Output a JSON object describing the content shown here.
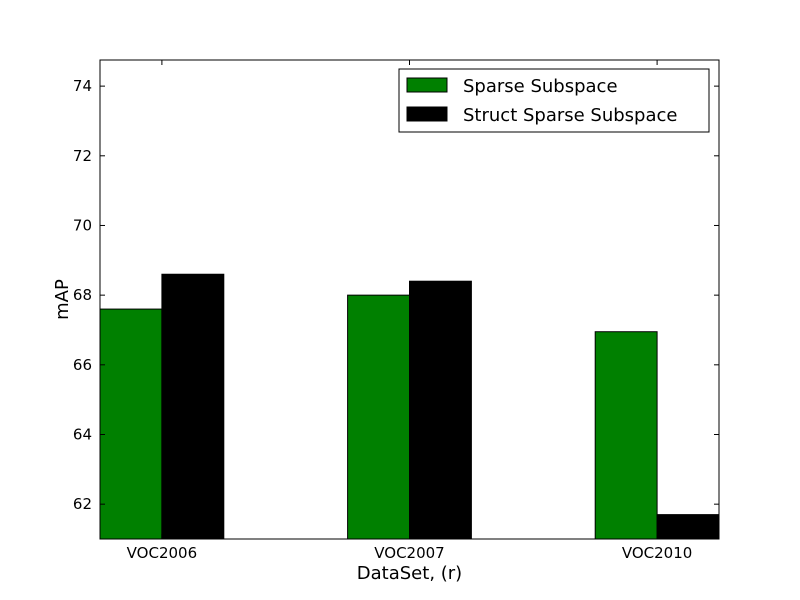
{
  "chart_data": {
    "type": "bar",
    "categories": [
      "VOC2006",
      "VOC2007",
      "VOC2010"
    ],
    "series": [
      {
        "name": "Sparse Subspace",
        "values": [
          67.6,
          68.0,
          66.95
        ],
        "color": "#008000"
      },
      {
        "name": "Struct Sparse Subspace",
        "values": [
          68.6,
          68.4,
          61.7
        ],
        "color": "#000000"
      }
    ],
    "xlabel": "DataSet, (r)",
    "ylabel": "mAP",
    "ylim": [
      61.0,
      74.75
    ],
    "yticks": [
      62,
      64,
      66,
      68,
      70,
      72,
      74
    ],
    "grid": false,
    "legend_position": "top-right"
  }
}
